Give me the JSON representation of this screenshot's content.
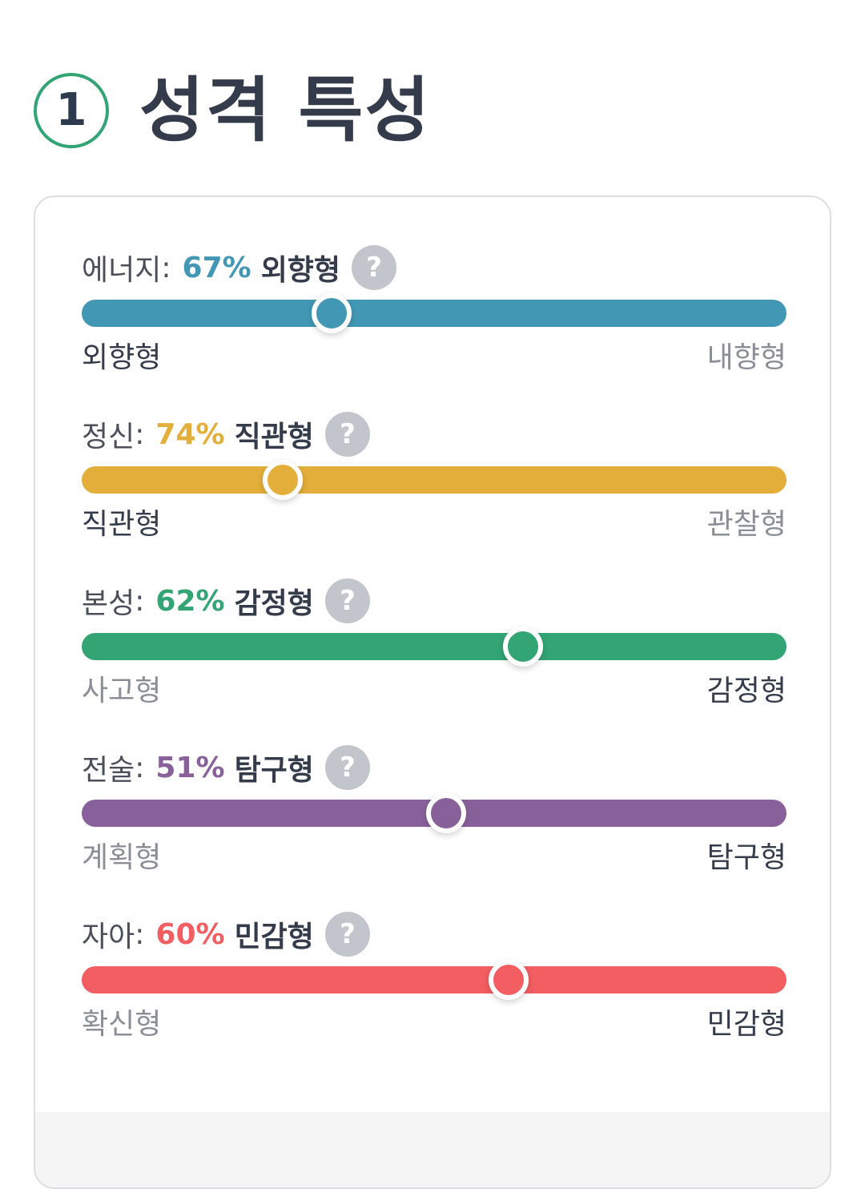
{
  "section": {
    "number": "1",
    "title": "성격 특성"
  },
  "help_symbol": "?",
  "icons": {
    "help": "question-circle-icon"
  },
  "traits": [
    {
      "name": "에너지",
      "colon": ":",
      "percent": "67%",
      "type": "외향형",
      "left_label": "외향형",
      "right_label": "내향형",
      "active_side": "left",
      "color": "#4298b4",
      "knob_position": 0.355
    },
    {
      "name": "정신",
      "colon": ":",
      "percent": "74%",
      "type": "직관형",
      "left_label": "직관형",
      "right_label": "관찰형",
      "active_side": "left",
      "color": "#e4ae3a",
      "knob_position": 0.285
    },
    {
      "name": "본성",
      "colon": ":",
      "percent": "62%",
      "type": "감정형",
      "left_label": "사고형",
      "right_label": "감정형",
      "active_side": "right",
      "color": "#33a474",
      "knob_position": 0.626
    },
    {
      "name": "전술",
      "colon": ":",
      "percent": "51%",
      "type": "탐구형",
      "left_label": "계획형",
      "right_label": "탐구형",
      "active_side": "right",
      "color": "#88619a",
      "knob_position": 0.517
    },
    {
      "name": "자아",
      "colon": ":",
      "percent": "60%",
      "type": "민감형",
      "left_label": "확신형",
      "right_label": "민감형",
      "active_side": "right",
      "color": "#f25e62",
      "knob_position": 0.606
    }
  ]
}
